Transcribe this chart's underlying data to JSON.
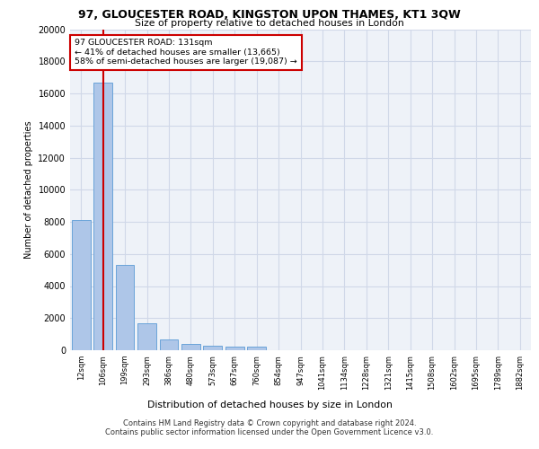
{
  "title": "97, GLOUCESTER ROAD, KINGSTON UPON THAMES, KT1 3QW",
  "subtitle": "Size of property relative to detached houses in London",
  "xlabel": "Distribution of detached houses by size in London",
  "ylabel": "Number of detached properties",
  "categories": [
    "12sqm",
    "106sqm",
    "199sqm",
    "293sqm",
    "386sqm",
    "480sqm",
    "573sqm",
    "667sqm",
    "760sqm",
    "854sqm",
    "947sqm",
    "1041sqm",
    "1134sqm",
    "1228sqm",
    "1321sqm",
    "1415sqm",
    "1508sqm",
    "1602sqm",
    "1695sqm",
    "1789sqm",
    "1882sqm"
  ],
  "values": [
    8100,
    16650,
    5300,
    1700,
    650,
    370,
    290,
    200,
    200,
    0,
    0,
    0,
    0,
    0,
    0,
    0,
    0,
    0,
    0,
    0,
    0
  ],
  "bar_color": "#aec6e8",
  "bar_edge_color": "#5b9bd5",
  "grid_color": "#d0d8e8",
  "bg_color": "#eef2f8",
  "vline_x": 1,
  "vline_color": "#cc0000",
  "annotation_text": "97 GLOUCESTER ROAD: 131sqm\n← 41% of detached houses are smaller (13,665)\n58% of semi-detached houses are larger (19,087) →",
  "annotation_box_color": "#cc0000",
  "footer": "Contains HM Land Registry data © Crown copyright and database right 2024.\nContains public sector information licensed under the Open Government Licence v3.0.",
  "ylim": [
    0,
    20000
  ],
  "yticks": [
    0,
    2000,
    4000,
    6000,
    8000,
    10000,
    12000,
    14000,
    16000,
    18000,
    20000
  ]
}
